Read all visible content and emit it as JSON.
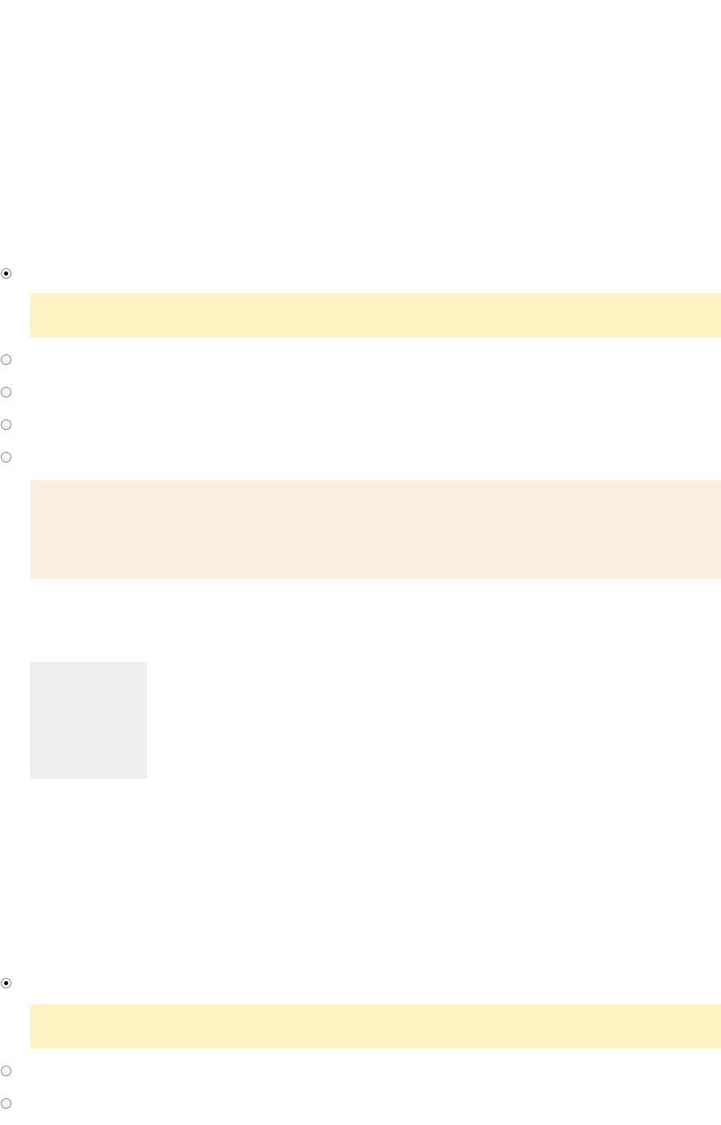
{
  "colors": {
    "highlight_yellow": "#fff2c2",
    "highlight_peach": "#fbefdf",
    "placeholder_gray": "#efefef"
  },
  "group1": {
    "radios": [
      {
        "checked": true
      },
      {
        "checked": false
      },
      {
        "checked": false
      },
      {
        "checked": false
      },
      {
        "checked": false
      }
    ]
  },
  "group2": {
    "radios": [
      {
        "checked": true
      },
      {
        "checked": false
      },
      {
        "checked": false
      }
    ]
  }
}
